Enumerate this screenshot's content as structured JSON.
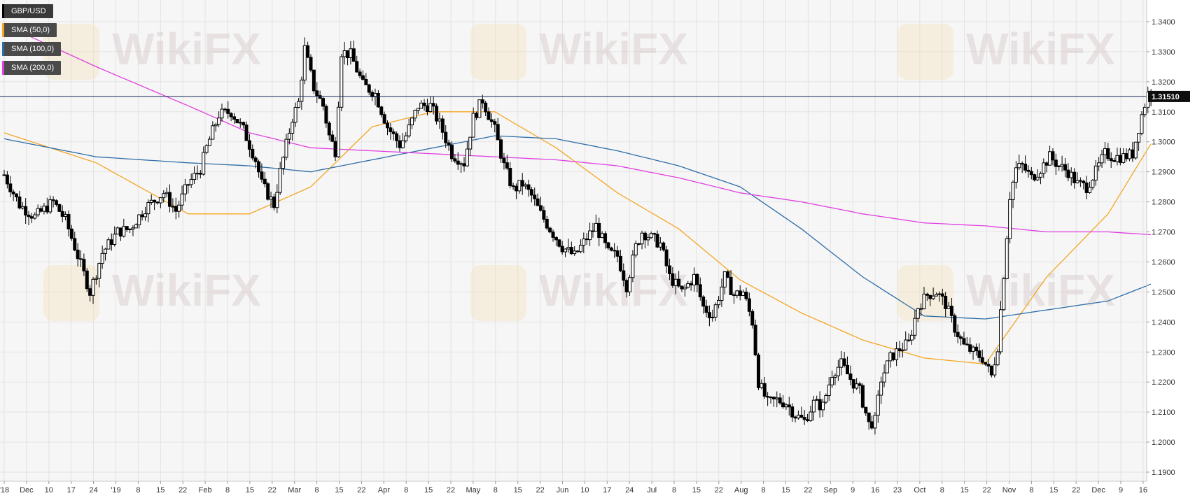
{
  "chart_data": {
    "type": "candlestick",
    "symbol": "GBP/USD",
    "last_price_label": "1.31510",
    "last_price": 1.3151,
    "ylim": [
      1.185,
      1.3475
    ],
    "y_ticks": [
      "1.1900",
      "1.2000",
      "1.2100",
      "1.2200",
      "1.2300",
      "1.2400",
      "1.2500",
      "1.2600",
      "1.2700",
      "1.2800",
      "1.2900",
      "1.3000",
      "1.3100",
      "1.3200",
      "1.3300",
      "1.3400"
    ],
    "x_ticks": [
      "'18",
      "Dec",
      "10",
      "17",
      "24",
      "'19",
      "8",
      "15",
      "22",
      "Feb",
      "8",
      "15",
      "22",
      "Mar",
      "8",
      "15",
      "22",
      "Apr",
      "8",
      "15",
      "22",
      "May",
      "8",
      "15",
      "22",
      "Jun",
      "10",
      "17",
      "24",
      "Jul",
      "8",
      "15",
      "22",
      "Aug",
      "8",
      "15",
      "22",
      "Sep",
      "9",
      "16",
      "23",
      "Oct",
      "8",
      "15",
      "22",
      "Nov",
      "8",
      "15",
      "22",
      "Dec",
      "9",
      "16"
    ],
    "price_path": [
      [
        0,
        1.289
      ],
      [
        5,
        1.279
      ],
      [
        10,
        1.275
      ],
      [
        16,
        1.28
      ],
      [
        20,
        1.274
      ],
      [
        26,
        1.256
      ],
      [
        28,
        1.25
      ],
      [
        32,
        1.263
      ],
      [
        37,
        1.27
      ],
      [
        41,
        1.271
      ],
      [
        46,
        1.278
      ],
      [
        52,
        1.283
      ],
      [
        56,
        1.277
      ],
      [
        60,
        1.286
      ],
      [
        64,
        1.291
      ],
      [
        66,
        1.298
      ],
      [
        70,
        1.309
      ],
      [
        74,
        1.31
      ],
      [
        78,
        1.304
      ],
      [
        82,
        1.294
      ],
      [
        84,
        1.286
      ],
      [
        88,
        1.279
      ],
      [
        90,
        1.29
      ],
      [
        94,
        1.308
      ],
      [
        96,
        1.313
      ],
      [
        98,
        1.331
      ],
      [
        101,
        1.318
      ],
      [
        104,
        1.312
      ],
      [
        106,
        1.302
      ],
      [
        108,
        1.297
      ],
      [
        110,
        1.33
      ],
      [
        113,
        1.329
      ],
      [
        117,
        1.319
      ],
      [
        121,
        1.316
      ],
      [
        125,
        1.305
      ],
      [
        129,
        1.299
      ],
      [
        131,
        1.302
      ],
      [
        135,
        1.312
      ],
      [
        139,
        1.312
      ],
      [
        142,
        1.306
      ],
      [
        146,
        1.296
      ],
      [
        150,
        1.293
      ],
      [
        153,
        1.308
      ],
      [
        156,
        1.314
      ],
      [
        160,
        1.304
      ],
      [
        163,
        1.292
      ],
      [
        166,
        1.284
      ],
      [
        169,
        1.286
      ],
      [
        172,
        1.282
      ],
      [
        175,
        1.276
      ],
      [
        178,
        1.271
      ],
      [
        182,
        1.265
      ],
      [
        186,
        1.262
      ],
      [
        190,
        1.268
      ],
      [
        193,
        1.272
      ],
      [
        197,
        1.263
      ],
      [
        200,
        1.262
      ],
      [
        203,
        1.252
      ],
      [
        206,
        1.265
      ],
      [
        208,
        1.27
      ],
      [
        211,
        1.268
      ],
      [
        214,
        1.266
      ],
      [
        217,
        1.255
      ],
      [
        221,
        1.25
      ],
      [
        225,
        1.255
      ],
      [
        228,
        1.245
      ],
      [
        231,
        1.242
      ],
      [
        235,
        1.255
      ],
      [
        238,
        1.249
      ],
      [
        241,
        1.25
      ],
      [
        244,
        1.24
      ],
      [
        246,
        1.22
      ],
      [
        249,
        1.213
      ],
      [
        252,
        1.214
      ],
      [
        255,
        1.213
      ],
      [
        258,
        1.209
      ],
      [
        261,
        1.207
      ],
      [
        264,
        1.213
      ],
      [
        267,
        1.212
      ],
      [
        270,
        1.223
      ],
      [
        273,
        1.226
      ],
      [
        276,
        1.221
      ],
      [
        279,
        1.217
      ],
      [
        282,
        1.206
      ],
      [
        284,
        1.207
      ],
      [
        286,
        1.221
      ],
      [
        289,
        1.228
      ],
      [
        292,
        1.231
      ],
      [
        295,
        1.233
      ],
      [
        298,
        1.245
      ],
      [
        301,
        1.249
      ],
      [
        304,
        1.25
      ],
      [
        307,
        1.246
      ],
      [
        310,
        1.238
      ],
      [
        313,
        1.232
      ],
      [
        316,
        1.23
      ],
      [
        319,
        1.228
      ],
      [
        322,
        1.222
      ],
      [
        324,
        1.232
      ],
      [
        326,
        1.256
      ],
      [
        328,
        1.282
      ],
      [
        330,
        1.291
      ],
      [
        332,
        1.292
      ],
      [
        335,
        1.288
      ],
      [
        338,
        1.291
      ],
      [
        341,
        1.295
      ],
      [
        344,
        1.292
      ],
      [
        347,
        1.29
      ],
      [
        350,
        1.286
      ],
      [
        353,
        1.285
      ],
      [
        356,
        1.29
      ],
      [
        359,
        1.296
      ],
      [
        362,
        1.295
      ],
      [
        365,
        1.295
      ],
      [
        368,
        1.296
      ],
      [
        371,
        1.309
      ],
      [
        373,
        1.316
      ],
      [
        375,
        1.3151
      ]
    ],
    "sma_50": [
      [
        0,
        1.303
      ],
      [
        30,
        1.293
      ],
      [
        60,
        1.276
      ],
      [
        80,
        1.276
      ],
      [
        100,
        1.285
      ],
      [
        120,
        1.305
      ],
      [
        140,
        1.31
      ],
      [
        160,
        1.31
      ],
      [
        180,
        1.298
      ],
      [
        200,
        1.283
      ],
      [
        220,
        1.271
      ],
      [
        240,
        1.254
      ],
      [
        260,
        1.243
      ],
      [
        280,
        1.234
      ],
      [
        300,
        1.228
      ],
      [
        320,
        1.226
      ],
      [
        340,
        1.255
      ],
      [
        360,
        1.276
      ],
      [
        375,
        1.301
      ]
    ],
    "sma_100": [
      [
        0,
        1.301
      ],
      [
        30,
        1.295
      ],
      [
        60,
        1.293
      ],
      [
        80,
        1.292
      ],
      [
        100,
        1.29
      ],
      [
        120,
        1.294
      ],
      [
        140,
        1.298
      ],
      [
        160,
        1.302
      ],
      [
        180,
        1.301
      ],
      [
        200,
        1.297
      ],
      [
        220,
        1.292
      ],
      [
        240,
        1.285
      ],
      [
        260,
        1.271
      ],
      [
        280,
        1.255
      ],
      [
        300,
        1.242
      ],
      [
        320,
        1.241
      ],
      [
        340,
        1.244
      ],
      [
        360,
        1.247
      ],
      [
        375,
        1.253
      ]
    ],
    "sma_200": [
      [
        0,
        1.339
      ],
      [
        30,
        1.325
      ],
      [
        60,
        1.312
      ],
      [
        80,
        1.303
      ],
      [
        100,
        1.298
      ],
      [
        120,
        1.297
      ],
      [
        140,
        1.296
      ],
      [
        160,
        1.295
      ],
      [
        180,
        1.294
      ],
      [
        200,
        1.292
      ],
      [
        220,
        1.288
      ],
      [
        240,
        1.283
      ],
      [
        260,
        1.28
      ],
      [
        280,
        1.276
      ],
      [
        300,
        1.273
      ],
      [
        320,
        1.272
      ],
      [
        340,
        1.27
      ],
      [
        360,
        1.27
      ],
      [
        375,
        1.269
      ]
    ]
  },
  "legend": [
    {
      "label": "GBP/USD",
      "color": "#000000"
    },
    {
      "label": "SMA (50,0)",
      "color": "#f5a623"
    },
    {
      "label": "SMA (100,0)",
      "color": "#2f6ea8"
    },
    {
      "label": "SMA (200,0)",
      "color": "#e040e0"
    }
  ],
  "colors": {
    "background": "#f6f6f6",
    "grid": "#e3e3e3",
    "candle_up": "#ffffff",
    "candle_down": "#000000",
    "price_line": "#1a2a5a",
    "price_label_bg": "#0d0d0d"
  },
  "watermark": "WikiFX"
}
